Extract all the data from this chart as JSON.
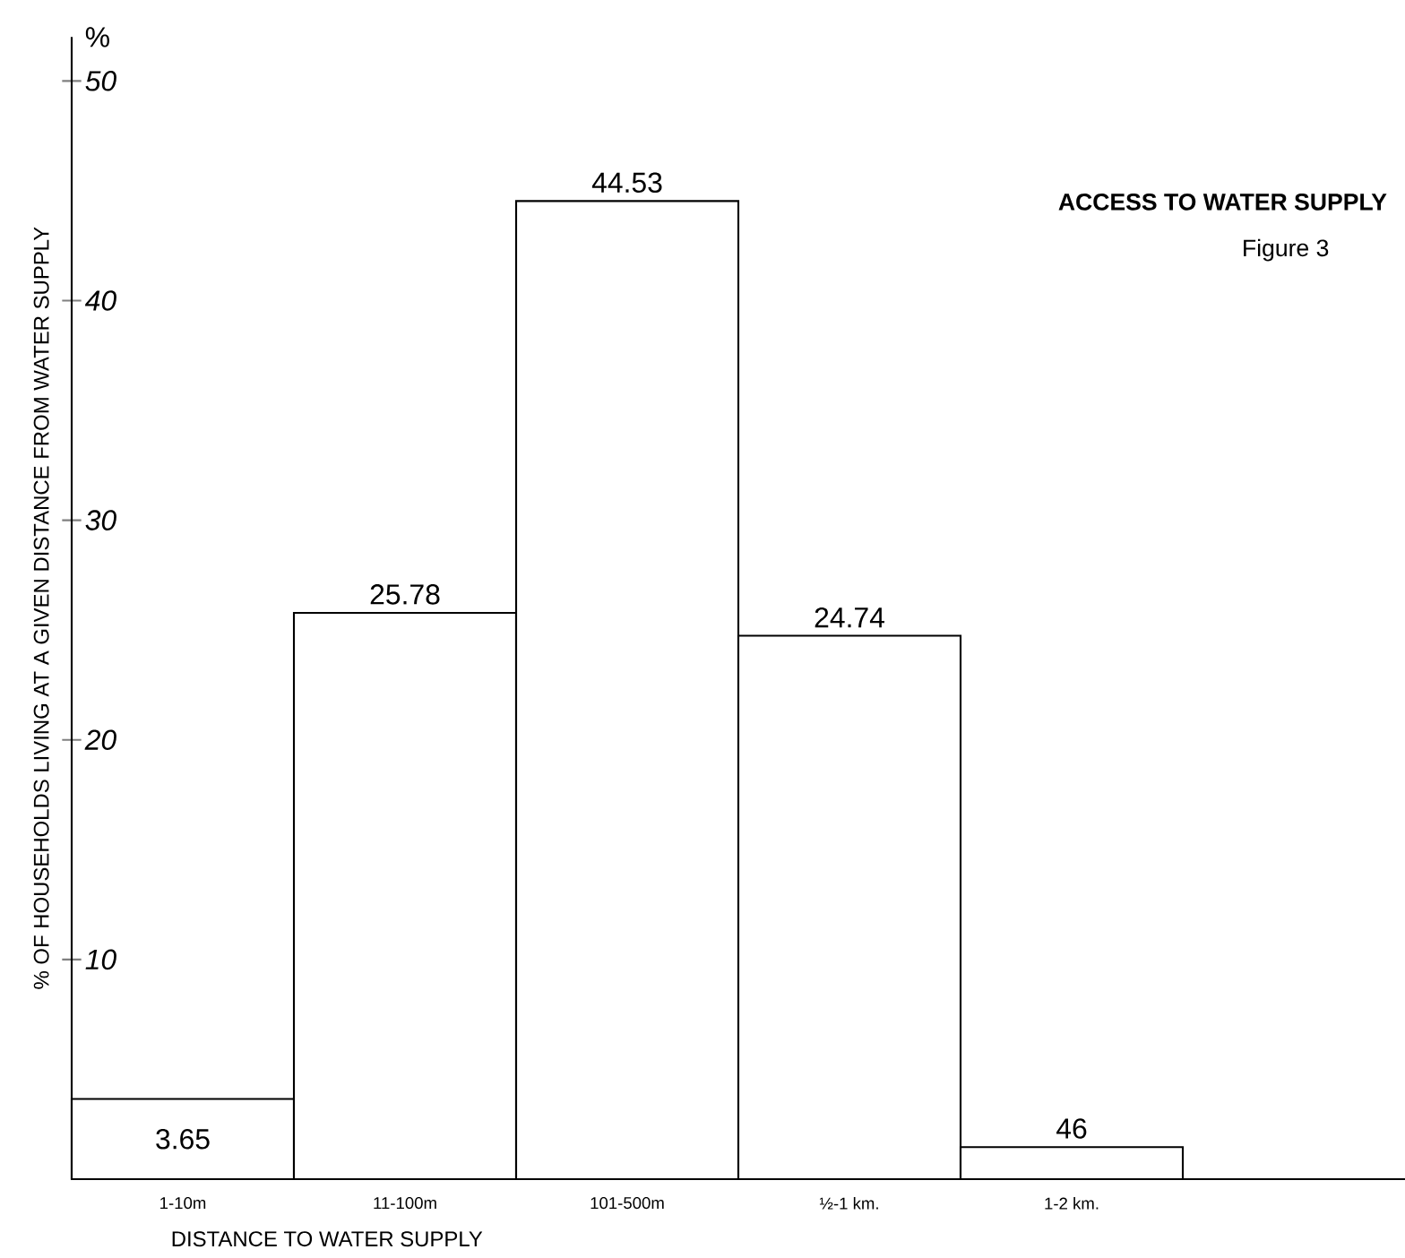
{
  "chart_data": {
    "type": "bar",
    "title": "ACCESS TO WATER SUPPLY",
    "subtitle": "Figure 3",
    "xlabel": "DISTANCE TO WATER SUPPLY",
    "ylabel": "% OF HOUSEHOLDS LIVING AT A GIVEN DISTANCE FROM WATER SUPPLY",
    "annotations": [
      "%",
      {
        "text": "46",
        "x": "1-2 km.",
        "y": 1.46
      }
    ],
    "categories": [
      "1-10m",
      "11-100m",
      "101-500m",
      "½-1 km.",
      "1-2 km."
    ],
    "values": [
      3.65,
      25.78,
      44.53,
      24.74,
      1.46
    ],
    "value_labels": [
      "3.65",
      "25.78",
      "44.53",
      "24.74",
      null
    ],
    "color": "#ffffff",
    "ylim": [
      0,
      52
    ],
    "yticks": [
      10,
      20,
      30,
      40,
      50
    ]
  }
}
